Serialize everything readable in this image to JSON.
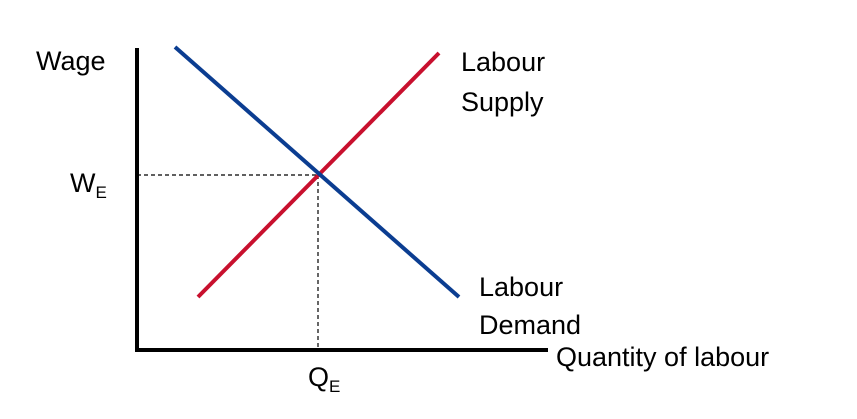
{
  "chart_data": {
    "type": "line",
    "title": "",
    "ylabel": "Wage",
    "xlabel": "Quantity of labour",
    "grid": false,
    "legend": "none",
    "equilibrium": {
      "wage_label": "W",
      "wage_subscript": "E",
      "quantity_label": "Q",
      "quantity_subscript": "E"
    },
    "series": [
      {
        "name": "Labour Supply",
        "name_lines": [
          "Labour",
          "Supply"
        ],
        "color": "#c8102e",
        "slope": "upward"
      },
      {
        "name": "Labour Demand",
        "name_lines": [
          "Labour",
          "Demand"
        ],
        "color": "#0b3d91",
        "slope": "downward"
      }
    ],
    "axis_color": "#000000",
    "guide_style": "dashed"
  }
}
